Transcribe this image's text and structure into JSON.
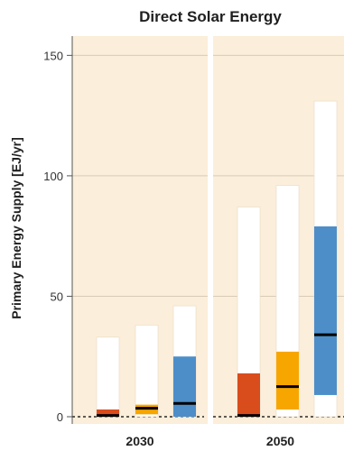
{
  "chart_data": {
    "type": "bar",
    "subtype": "range-bars-with-medians",
    "title": "Direct Solar Energy",
    "ylabel": "Primary Energy Supply [EJ/yr]",
    "ylim": [
      -3,
      158
    ],
    "yticks": [
      0,
      50,
      100,
      150
    ],
    "grid": true,
    "background_color": "#fbeeda",
    "gridline_color": "#d9cbb4",
    "colors": {
      "bar_outline_white": "#ffffff",
      "red": "#d94c1c",
      "orange": "#f7a600",
      "blue": "#4d8ec9",
      "median": "#000000"
    },
    "panels": [
      {
        "label": "2030",
        "bars": [
          {
            "color": "red",
            "max": 33,
            "p75": 3,
            "p25": 0,
            "min": 0,
            "median": 0.5
          },
          {
            "color": "orange",
            "max": 38,
            "p75": 5,
            "p25": 1,
            "min": 0,
            "median": 3.5
          },
          {
            "color": "blue",
            "max": 46,
            "p75": 25,
            "p25": 0,
            "min": 0,
            "median": 5.5
          }
        ]
      },
      {
        "label": "2050",
        "bars": [
          {
            "color": "red",
            "max": 87,
            "p75": 18,
            "p25": 0,
            "min": 0,
            "median": 0.5
          },
          {
            "color": "orange",
            "max": 96,
            "p75": 27,
            "p25": 3,
            "min": 0,
            "median": 12.5
          },
          {
            "color": "blue",
            "max": 131,
            "p75": 79,
            "p25": 9,
            "min": 0,
            "median": 34
          }
        ]
      }
    ]
  }
}
